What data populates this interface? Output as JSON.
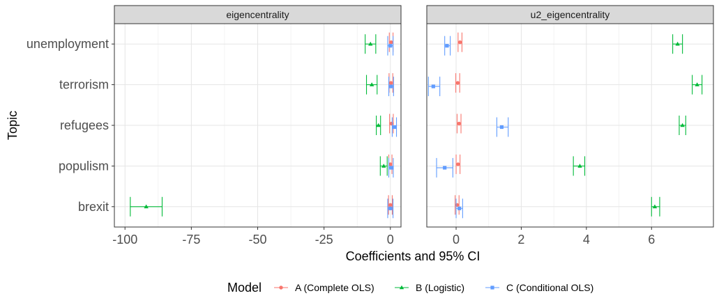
{
  "chart_data": {
    "type": "scatter",
    "xlabel": "Coefficients and 95% CI",
    "ylabel": "Topic",
    "categories": [
      "brexit",
      "populism",
      "refugees",
      "terrorism",
      "unemployment"
    ],
    "legend": {
      "title": "Model",
      "position": "bottom"
    },
    "grid": true,
    "series_styles": [
      {
        "name": "A (Complete OLS)",
        "color": "#F8766D",
        "shape": "circle"
      },
      {
        "name": "B (Logistic)",
        "color": "#00BA38",
        "shape": "triangle"
      },
      {
        "name": "C (Conditional OLS)",
        "color": "#619CFF",
        "shape": "square"
      }
    ],
    "panels": [
      {
        "title": "eigencentrality",
        "xlim": [
          -104,
          4
        ],
        "xticks": [
          -100,
          -75,
          -50,
          -25,
          0
        ],
        "xtick_labels": [
          "-100",
          "-75",
          "-50",
          "-25",
          "0"
        ],
        "series": [
          {
            "name": "A (Complete OLS)",
            "points": [
              {
                "y": "brexit",
                "est": 0.0,
                "lo": -0.7,
                "hi": 0.7
              },
              {
                "y": "populism",
                "est": 0.0,
                "lo": -0.6,
                "hi": 0.6
              },
              {
                "y": "refugees",
                "est": 0.4,
                "lo": -0.3,
                "hi": 1.1
              },
              {
                "y": "terrorism",
                "est": 0.2,
                "lo": -0.5,
                "hi": 0.9
              },
              {
                "y": "unemployment",
                "est": 0.3,
                "lo": -0.4,
                "hi": 1.0
              }
            ]
          },
          {
            "name": "B (Logistic)",
            "points": [
              {
                "y": "brexit",
                "est": -92,
                "lo": -98,
                "hi": -86
              },
              {
                "y": "populism",
                "est": -2.5,
                "lo": -3.8,
                "hi": -1.2
              },
              {
                "y": "refugees",
                "est": -4.5,
                "lo": -5.3,
                "hi": -3.7
              },
              {
                "y": "terrorism",
                "est": -7.0,
                "lo": -9.0,
                "hi": -5.0
              },
              {
                "y": "unemployment",
                "est": -7.5,
                "lo": -9.5,
                "hi": -5.5
              }
            ]
          },
          {
            "name": "C (Conditional OLS)",
            "points": [
              {
                "y": "brexit",
                "est": 0.0,
                "lo": -1.0,
                "hi": 1.0
              },
              {
                "y": "populism",
                "est": 0.3,
                "lo": -0.6,
                "hi": 1.1
              },
              {
                "y": "refugees",
                "est": 1.5,
                "lo": 0.7,
                "hi": 2.3
              },
              {
                "y": "terrorism",
                "est": 0.3,
                "lo": -0.6,
                "hi": 1.2
              },
              {
                "y": "unemployment",
                "est": 0.0,
                "lo": -1.0,
                "hi": 1.0
              }
            ]
          }
        ]
      },
      {
        "title": "u2_eigencentrality",
        "xlim": [
          -0.9,
          7.9
        ],
        "xticks": [
          0,
          2,
          4,
          6
        ],
        "xtick_labels": [
          "0",
          "2",
          "4",
          "6"
        ],
        "series": [
          {
            "name": "A (Complete OLS)",
            "points": [
              {
                "y": "brexit",
                "est": 0.03,
                "lo": -0.03,
                "hi": 0.09
              },
              {
                "y": "populism",
                "est": 0.06,
                "lo": 0.0,
                "hi": 0.12
              },
              {
                "y": "refugees",
                "est": 0.09,
                "lo": 0.03,
                "hi": 0.15
              },
              {
                "y": "terrorism",
                "est": 0.05,
                "lo": -0.01,
                "hi": 0.11
              },
              {
                "y": "unemployment",
                "est": 0.12,
                "lo": 0.06,
                "hi": 0.18
              }
            ]
          },
          {
            "name": "B (Logistic)",
            "points": [
              {
                "y": "brexit",
                "est": 6.1,
                "lo": 6.0,
                "hi": 6.25
              },
              {
                "y": "populism",
                "est": 3.8,
                "lo": 3.6,
                "hi": 3.95
              },
              {
                "y": "refugees",
                "est": 6.95,
                "lo": 6.85,
                "hi": 7.05
              },
              {
                "y": "terrorism",
                "est": 7.4,
                "lo": 7.25,
                "hi": 7.55
              },
              {
                "y": "unemployment",
                "est": 6.8,
                "lo": 6.65,
                "hi": 6.95
              }
            ]
          },
          {
            "name": "C (Conditional OLS)",
            "points": [
              {
                "y": "brexit",
                "est": 0.1,
                "lo": 0.0,
                "hi": 0.2
              },
              {
                "y": "populism",
                "est": -0.35,
                "lo": -0.6,
                "hi": -0.1
              },
              {
                "y": "refugees",
                "est": 1.4,
                "lo": 1.25,
                "hi": 1.6
              },
              {
                "y": "terrorism",
                "est": -0.7,
                "lo": -0.85,
                "hi": -0.5
              },
              {
                "y": "unemployment",
                "est": -0.28,
                "lo": -0.35,
                "hi": -0.18
              }
            ]
          }
        ]
      }
    ]
  }
}
